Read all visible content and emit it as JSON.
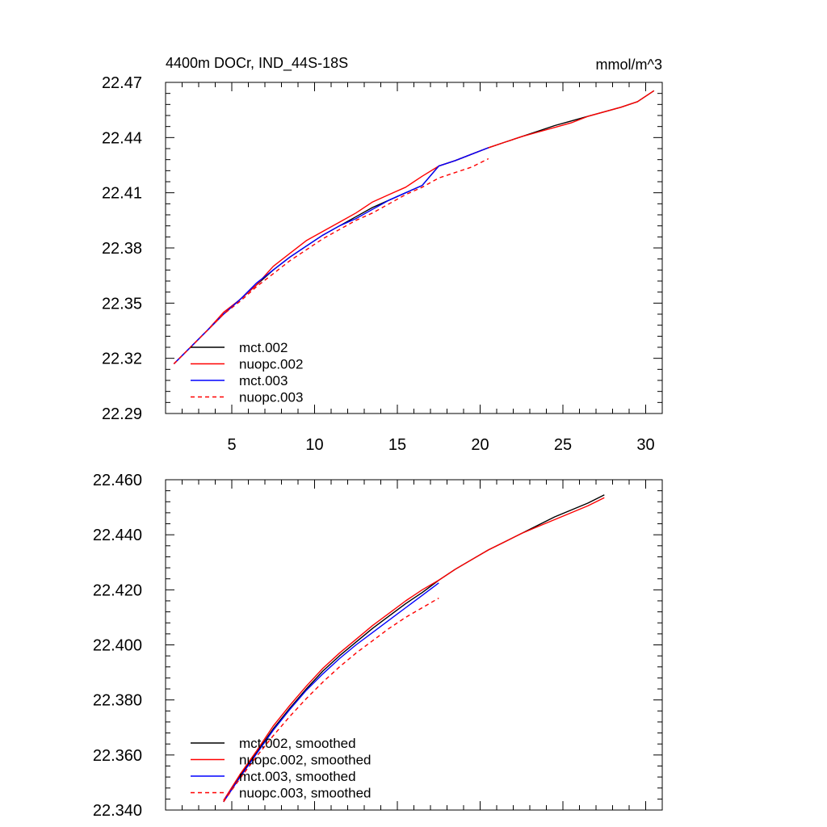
{
  "chart_data": [
    {
      "type": "line",
      "title": "4400m DOCr, IND_44S-18S",
      "units": "mmol/m^3",
      "xlabel": "",
      "ylabel": "",
      "xlim": [
        1,
        31
      ],
      "ylim": [
        22.29,
        22.47
      ],
      "x_ticks": [
        5,
        10,
        15,
        20,
        25,
        30
      ],
      "x_tick_labels": [
        "5",
        "10",
        "15",
        "20",
        "25",
        "30"
      ],
      "y_ticks": [
        22.29,
        22.32,
        22.35,
        22.38,
        22.41,
        22.44,
        22.47
      ],
      "y_tick_labels": [
        "22.29",
        "22.32",
        "22.35",
        "22.38",
        "22.41",
        "22.44",
        "22.47"
      ],
      "legend_position": "bottom-left",
      "series": [
        {
          "name": "mct.002",
          "color": "#000000",
          "dash": "solid",
          "x": [
            1.5,
            2.5,
            3.5,
            4.5,
            5.5,
            6.5,
            7.5,
            8.5,
            9.5,
            10.5,
            11.5,
            12.5,
            13.5,
            14.5,
            15.5,
            16.5,
            17.5,
            18.5,
            19.5,
            20.5,
            21.5,
            22.5,
            23.5,
            24.5,
            25.5,
            26.5,
            27.5,
            28.5,
            29.5,
            30.5
          ],
          "y": [
            22.317,
            22.326,
            22.335,
            22.344,
            22.352,
            22.36,
            22.368,
            22.375,
            22.381,
            22.387,
            22.392,
            22.397,
            22.402,
            22.406,
            22.41,
            22.414,
            22.4245,
            22.4275,
            22.431,
            22.4345,
            22.4375,
            22.4405,
            22.4435,
            22.4465,
            22.449,
            22.4515,
            22.454,
            22.4565,
            22.4595,
            22.4655
          ]
        },
        {
          "name": "nuopc.002",
          "color": "#ff0000",
          "dash": "solid",
          "x": [
            1.5,
            2.5,
            3.5,
            4.5,
            5.5,
            6.5,
            7.5,
            8.5,
            9.5,
            10.5,
            11.5,
            12.5,
            13.5,
            14.5,
            15.5,
            16.5,
            17.5,
            18.5,
            19.5,
            20.5,
            21.5,
            22.5,
            23.5,
            24.5,
            25.5,
            26.5,
            27.5,
            28.5,
            29.5,
            30.5
          ],
          "y": [
            22.317,
            22.326,
            22.335,
            22.345,
            22.352,
            22.36,
            22.37,
            22.377,
            22.384,
            22.389,
            22.394,
            22.399,
            22.405,
            22.409,
            22.413,
            22.419,
            22.4245,
            22.4275,
            22.431,
            22.4345,
            22.4375,
            22.4405,
            22.443,
            22.4455,
            22.448,
            22.4515,
            22.454,
            22.4565,
            22.4595,
            22.4655
          ]
        },
        {
          "name": "mct.003",
          "color": "#0000ff",
          "dash": "solid",
          "x": [
            1.5,
            2.5,
            3.5,
            4.5,
            5.5,
            6.5,
            7.5,
            8.5,
            9.5,
            10.5,
            11.5,
            12.5,
            13.5,
            14.5,
            15.5,
            16.5,
            17.5,
            18.5,
            19.5,
            20.5
          ],
          "y": [
            22.317,
            22.326,
            22.335,
            22.344,
            22.352,
            22.361,
            22.368,
            22.375,
            22.381,
            22.387,
            22.392,
            22.396,
            22.401,
            22.406,
            22.41,
            22.414,
            22.4245,
            22.4275,
            22.431,
            22.4345
          ]
        },
        {
          "name": "nuopc.003",
          "color": "#ff0000",
          "dash": "dashed",
          "x": [
            1.5,
            2.5,
            3.5,
            4.5,
            5.5,
            6.5,
            7.5,
            8.5,
            9.5,
            10.5,
            11.5,
            12.5,
            13.5,
            14.5,
            15.5,
            16.5,
            17.5,
            18.5,
            19.5,
            20.5
          ],
          "y": [
            22.317,
            22.326,
            22.335,
            22.344,
            22.351,
            22.359,
            22.366,
            22.373,
            22.379,
            22.385,
            22.39,
            22.395,
            22.399,
            22.404,
            22.409,
            22.413,
            22.418,
            22.421,
            22.424,
            22.4285
          ]
        }
      ]
    },
    {
      "type": "line",
      "title": "",
      "xlabel": "",
      "ylabel": "",
      "xlim": [
        1,
        31
      ],
      "ylim": [
        22.34,
        22.46
      ],
      "x_ticks": [
        5,
        10,
        15,
        20,
        25,
        30
      ],
      "y_ticks": [
        22.34,
        22.36,
        22.38,
        22.4,
        22.42,
        22.44,
        22.46
      ],
      "y_tick_labels": [
        "22.340",
        "22.360",
        "22.380",
        "22.400",
        "22.420",
        "22.440",
        "22.460"
      ],
      "legend_position": "bottom-left",
      "series": [
        {
          "name": "mct.002, smoothed",
          "color": "#000000",
          "dash": "solid",
          "x": [
            4.5,
            5.5,
            6.5,
            7.5,
            8.5,
            9.5,
            10.5,
            11.5,
            12.5,
            13.5,
            14.5,
            15.5,
            16.5,
            17.5,
            18.5,
            19.5,
            20.5,
            21.5,
            22.5,
            23.5,
            24.5,
            25.5,
            26.5,
            27.5
          ],
          "y": [
            22.343,
            22.3525,
            22.361,
            22.3695,
            22.377,
            22.384,
            22.3905,
            22.396,
            22.401,
            22.406,
            22.4105,
            22.415,
            22.419,
            22.4235,
            22.4275,
            22.431,
            22.4345,
            22.4375,
            22.4405,
            22.4435,
            22.4465,
            22.449,
            22.4515,
            22.4545
          ]
        },
        {
          "name": "nuopc.002, smoothed",
          "color": "#ff0000",
          "dash": "solid",
          "x": [
            4.5,
            5.5,
            6.5,
            7.5,
            8.5,
            9.5,
            10.5,
            11.5,
            12.5,
            13.5,
            14.5,
            15.5,
            16.5,
            17.5,
            18.5,
            19.5,
            20.5,
            21.5,
            22.5,
            23.5,
            24.5,
            25.5,
            26.5,
            27.5
          ],
          "y": [
            22.3435,
            22.353,
            22.3615,
            22.3705,
            22.378,
            22.385,
            22.3915,
            22.397,
            22.402,
            22.407,
            22.4115,
            22.416,
            22.42,
            22.4235,
            22.4275,
            22.431,
            22.4345,
            22.4375,
            22.4405,
            22.443,
            22.4455,
            22.448,
            22.4505,
            22.4535
          ]
        },
        {
          "name": "mct.003, smoothed",
          "color": "#0000ff",
          "dash": "solid",
          "x": [
            4.5,
            5.5,
            6.5,
            7.5,
            8.5,
            9.5,
            10.5,
            11.5,
            12.5,
            13.5,
            14.5,
            15.5,
            16.5,
            17.5
          ],
          "y": [
            22.343,
            22.352,
            22.3605,
            22.369,
            22.3765,
            22.3835,
            22.3895,
            22.395,
            22.4,
            22.4045,
            22.409,
            22.4135,
            22.418,
            22.4225
          ]
        },
        {
          "name": "nuopc.003, smoothed",
          "color": "#ff0000",
          "dash": "dashed",
          "x": [
            4.5,
            5.5,
            6.5,
            7.5,
            8.5,
            9.5,
            10.5,
            11.5,
            12.5,
            13.5,
            14.5,
            15.5,
            16.5,
            17.5
          ],
          "y": [
            22.343,
            22.3515,
            22.3595,
            22.367,
            22.374,
            22.3805,
            22.3865,
            22.392,
            22.397,
            22.4015,
            22.406,
            22.41,
            22.4135,
            22.417
          ]
        }
      ]
    }
  ]
}
